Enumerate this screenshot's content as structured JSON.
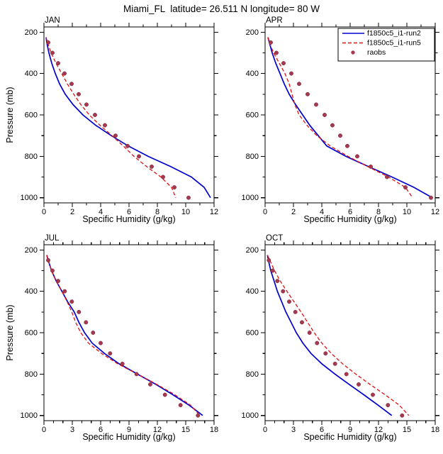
{
  "title": "Miami_FL  latitude= 26.511 N longitude= 80 W",
  "ylabel": "Pressure (mb)",
  "colors": {
    "run2": "#0000cd",
    "run5": "#e31111",
    "raobs": "#a8384f",
    "frame": "#000000"
  },
  "legend": {
    "position": "top-right of APR panel",
    "entries": [
      {
        "label": "f1850c5_i1-run2",
        "style": "solid",
        "color": "#0000cd"
      },
      {
        "label": "f1850c5_i1-run5",
        "style": "dashed",
        "color": "#e31111"
      },
      {
        "label": "raobs",
        "style": "dots",
        "color": "#a8384f"
      }
    ]
  },
  "chart_data": [
    {
      "type": "line",
      "label": "JAN",
      "xlabel": "Specific Humidity (g/kg)",
      "xlim": [
        0,
        12
      ],
      "xticks": [
        0,
        2,
        4,
        6,
        8,
        10,
        12
      ],
      "ylim": [
        175,
        1025
      ],
      "y_inverted": true,
      "yticks": [
        200,
        400,
        600,
        800,
        1000
      ],
      "grid": false,
      "series": [
        {
          "name": "f1850c5_i1-run2",
          "style": "solid",
          "color": "#0000cd",
          "pressure": [
            225,
            250,
            300,
            350,
            400,
            450,
            500,
            550,
            600,
            650,
            700,
            750,
            800,
            850,
            900,
            950,
            1000
          ],
          "q": [
            0.15,
            0.2,
            0.35,
            0.55,
            0.8,
            1.1,
            1.5,
            2.05,
            2.75,
            3.65,
            4.75,
            5.95,
            7.35,
            8.95,
            10.4,
            11.3,
            11.75
          ]
        },
        {
          "name": "f1850c5_i1-run5",
          "style": "dashed",
          "color": "#e31111",
          "pressure": [
            225,
            250,
            300,
            350,
            400,
            450,
            500,
            550,
            600,
            650,
            700,
            750,
            800,
            850,
            900,
            950,
            1000
          ],
          "q": [
            0.15,
            0.25,
            0.5,
            0.85,
            1.25,
            1.65,
            2.1,
            2.6,
            3.2,
            3.95,
            4.8,
            5.6,
            6.35,
            7.25,
            8.25,
            9.0,
            9.3
          ]
        },
        {
          "name": "raobs",
          "style": "dots",
          "color": "#a8384f",
          "pressure": [
            250,
            300,
            350,
            400,
            450,
            500,
            550,
            600,
            650,
            700,
            750,
            800,
            850,
            900,
            950,
            1000
          ],
          "q": [
            0.3,
            0.6,
            1.0,
            1.45,
            1.95,
            2.45,
            3.0,
            3.6,
            4.3,
            5.05,
            5.9,
            6.7,
            7.6,
            8.4,
            9.2,
            10.2
          ]
        }
      ]
    },
    {
      "type": "line",
      "label": "APR",
      "xlabel": "Specific Humidity (g/kg)",
      "xlim": [
        0,
        12
      ],
      "xticks": [
        0,
        2,
        4,
        6,
        8,
        10,
        12
      ],
      "ylim": [
        175,
        1025
      ],
      "y_inverted": true,
      "yticks": [
        200,
        400,
        600,
        800,
        1000
      ],
      "grid": false,
      "series": [
        {
          "name": "f1850c5_i1-run2",
          "style": "solid",
          "color": "#0000cd",
          "pressure": [
            225,
            250,
            300,
            350,
            400,
            450,
            500,
            550,
            600,
            650,
            700,
            750,
            800,
            850,
            900,
            950,
            1000
          ],
          "q": [
            0.2,
            0.3,
            0.5,
            0.75,
            1.05,
            1.35,
            1.7,
            2.15,
            2.65,
            3.15,
            3.75,
            4.35,
            5.7,
            7.3,
            8.95,
            10.5,
            11.8
          ]
        },
        {
          "name": "f1850c5_i1-run5",
          "style": "dashed",
          "color": "#e31111",
          "pressure": [
            225,
            250,
            300,
            350,
            400,
            450,
            500,
            550,
            600,
            650,
            700,
            750,
            800,
            850,
            900,
            950,
            1000
          ],
          "q": [
            0.2,
            0.3,
            0.6,
            1.0,
            1.4,
            1.7,
            1.9,
            2.1,
            2.4,
            2.95,
            3.65,
            4.6,
            5.85,
            7.25,
            8.7,
            9.9,
            10.4
          ]
        },
        {
          "name": "raobs",
          "style": "dots",
          "color": "#a8384f",
          "pressure": [
            250,
            300,
            350,
            400,
            450,
            500,
            550,
            600,
            650,
            700,
            750,
            800,
            850,
            900,
            950,
            1000
          ],
          "q": [
            0.4,
            0.8,
            1.3,
            1.85,
            2.4,
            3.0,
            3.6,
            4.2,
            4.75,
            5.3,
            5.8,
            6.5,
            7.45,
            8.6,
            9.9,
            11.7
          ]
        }
      ]
    },
    {
      "type": "line",
      "label": "JUL",
      "xlabel": "Specific Humidity (g/kg)",
      "xlim": [
        0,
        18
      ],
      "xticks": [
        0,
        3,
        6,
        9,
        12,
        15,
        18
      ],
      "ylim": [
        175,
        1025
      ],
      "y_inverted": true,
      "yticks": [
        200,
        400,
        600,
        800,
        1000
      ],
      "grid": false,
      "series": [
        {
          "name": "f1850c5_i1-run2",
          "style": "solid",
          "color": "#0000cd",
          "pressure": [
            225,
            250,
            300,
            350,
            400,
            450,
            500,
            550,
            600,
            650,
            700,
            750,
            800,
            850,
            900,
            950,
            1000
          ],
          "q": [
            0.3,
            0.45,
            0.8,
            1.3,
            1.9,
            2.5,
            3.2,
            3.7,
            4.3,
            5.1,
            6.4,
            7.95,
            9.9,
            11.85,
            13.65,
            15.35,
            16.8
          ]
        },
        {
          "name": "f1850c5_i1-run5",
          "style": "dashed",
          "color": "#e31111",
          "pressure": [
            225,
            250,
            300,
            350,
            400,
            450,
            500,
            550,
            600,
            650,
            700,
            750,
            800,
            850,
            900,
            950,
            1000
          ],
          "q": [
            0.3,
            0.45,
            0.8,
            1.3,
            1.9,
            2.45,
            2.95,
            3.35,
            3.9,
            4.7,
            6.1,
            7.8,
            9.9,
            11.95,
            13.85,
            15.5,
            16.5
          ]
        },
        {
          "name": "raobs",
          "style": "dots",
          "color": "#a8384f",
          "pressure": [
            250,
            300,
            350,
            400,
            450,
            500,
            550,
            600,
            650,
            700,
            750,
            800,
            850,
            900,
            950,
            1000
          ],
          "q": [
            0.45,
            0.9,
            1.5,
            2.2,
            2.95,
            3.7,
            4.45,
            5.2,
            6.0,
            7.0,
            8.3,
            9.8,
            11.25,
            12.8,
            14.45,
            16.3
          ]
        }
      ]
    },
    {
      "type": "line",
      "label": "OCT",
      "xlabel": "Specific Humidity (g/kg)",
      "xlim": [
        0,
        18
      ],
      "xticks": [
        0,
        3,
        6,
        9,
        12,
        15,
        18
      ],
      "ylim": [
        175,
        1025
      ],
      "y_inverted": true,
      "yticks": [
        200,
        400,
        600,
        800,
        1000
      ],
      "grid": false,
      "series": [
        {
          "name": "f1850c5_i1-run2",
          "style": "solid",
          "color": "#0000cd",
          "pressure": [
            225,
            250,
            300,
            350,
            400,
            450,
            500,
            550,
            600,
            650,
            700,
            750,
            800,
            850,
            900,
            950,
            1000
          ],
          "q": [
            0.25,
            0.35,
            0.6,
            0.95,
            1.3,
            1.75,
            2.2,
            2.75,
            3.3,
            4.0,
            4.85,
            6.0,
            7.4,
            8.9,
            10.45,
            11.95,
            13.4
          ]
        },
        {
          "name": "f1850c5_i1-run5",
          "style": "dashed",
          "color": "#e31111",
          "pressure": [
            225,
            250,
            300,
            350,
            400,
            450,
            500,
            550,
            600,
            650,
            700,
            750,
            800,
            850,
            900,
            950,
            1000
          ],
          "q": [
            0.25,
            0.5,
            1.0,
            1.6,
            2.3,
            3.05,
            3.8,
            4.5,
            5.2,
            6.0,
            7.0,
            8.2,
            9.6,
            11.1,
            12.7,
            14.2,
            15.2
          ]
        },
        {
          "name": "raobs",
          "style": "dots",
          "color": "#a8384f",
          "pressure": [
            250,
            300,
            350,
            400,
            450,
            500,
            550,
            600,
            650,
            700,
            750,
            800,
            850,
            900,
            950,
            1000
          ],
          "q": [
            0.4,
            0.8,
            1.3,
            1.9,
            2.55,
            3.2,
            3.9,
            4.7,
            5.5,
            6.4,
            7.4,
            8.6,
            9.9,
            11.4,
            13.0,
            14.5
          ]
        }
      ]
    }
  ]
}
